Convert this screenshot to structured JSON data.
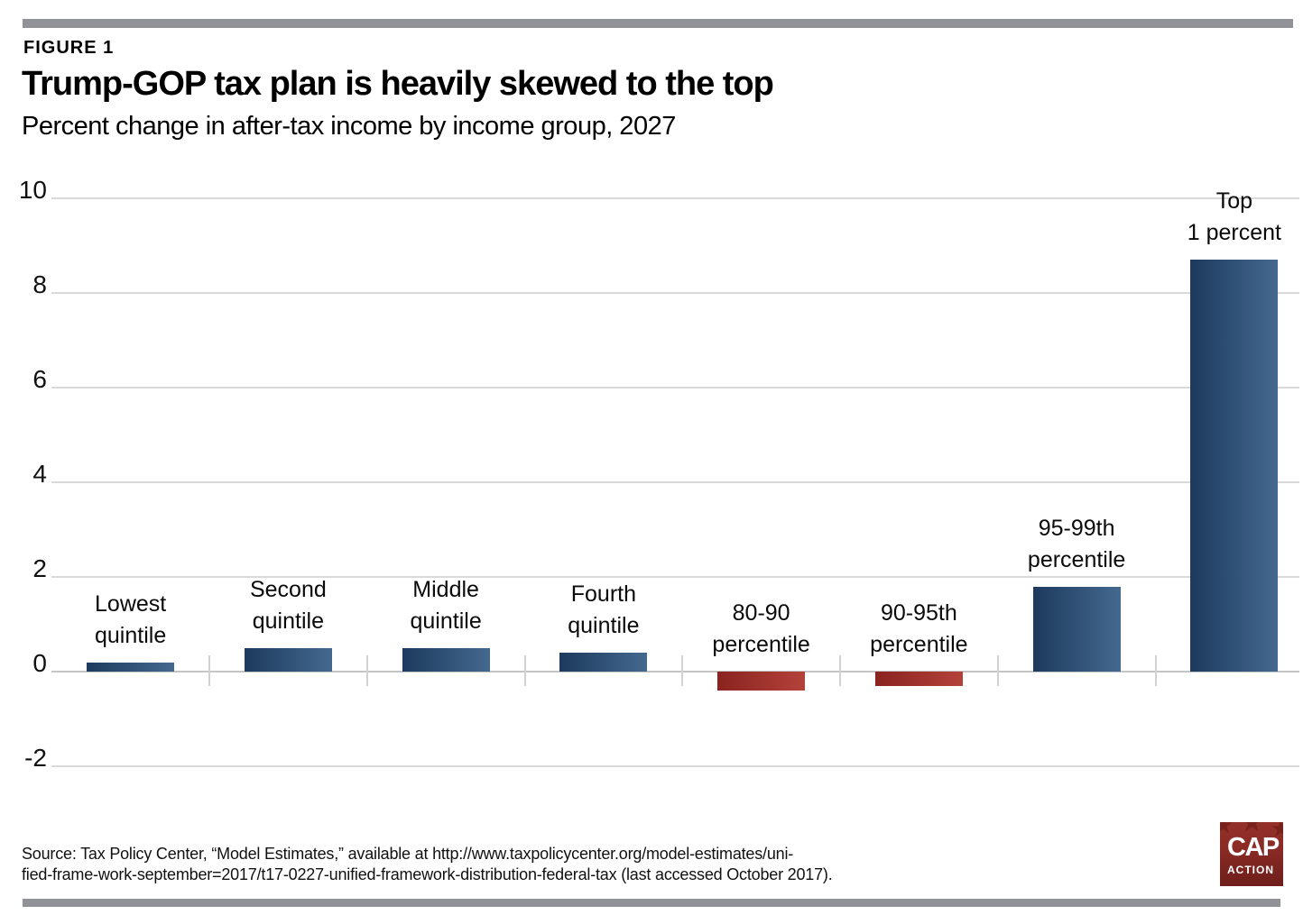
{
  "page": {
    "figure_label": "FIGURE 1",
    "title": "Trump-GOP tax plan is heavily skewed to the top",
    "subtitle": "Percent change in after-tax income by income group, 2027",
    "source_lines": [
      "Source: Tax Policy Center, “Model Estimates,” available at http://www.taxpolicycenter.org/model-estimates/uni-",
      "fied-frame-work-september=2017/t17-0227-unified-framework-distribution-federal-tax (last accessed October 2017)."
    ],
    "logo": {
      "line1": "CAP",
      "line2": "ACTION"
    }
  },
  "colors": {
    "bar_blue_dark": "#1d3a5e",
    "bar_blue_light": "#44698f",
    "bar_red_dark": "#8a231f",
    "bar_red_light": "#b4423a",
    "rule_gray": "#909298",
    "gridline": "#d9d9d9",
    "zero_line": "#c4c4c4",
    "logo_red_top": "#93302a",
    "logo_red_bottom": "#6e1e1b"
  },
  "chart_data": {
    "type": "bar",
    "figure_label": "FIGURE 1",
    "title": "Trump-GOP tax plan is heavily skewed to the top",
    "subtitle": "Percent change in after-tax income by income group, 2027",
    "xlabel": "",
    "ylabel": "",
    "ylim": [
      -2,
      10
    ],
    "grid": true,
    "legend": "none",
    "categories": [
      "Lowest quintile",
      "Second quintile",
      "Middle quintile",
      "Fourth quintile",
      "80-90 percentile",
      "90-95th percentile",
      "95-99th percentile",
      "Top 1 percent"
    ],
    "category_label_lines": [
      [
        "Lowest",
        "quintile"
      ],
      [
        "Second",
        "quintile"
      ],
      [
        "Middle",
        "quintile"
      ],
      [
        "Fourth",
        "quintile"
      ],
      [
        "80-90",
        "percentile"
      ],
      [
        "90-95th",
        "percentile"
      ],
      [
        "95-99th",
        "percentile"
      ],
      [
        "Top",
        "1 percent"
      ]
    ],
    "values": [
      0.2,
      0.5,
      0.5,
      0.4,
      -0.4,
      -0.3,
      1.8,
      8.7
    ],
    "bar_colors": [
      "blue",
      "blue",
      "blue",
      "blue",
      "red",
      "red",
      "blue",
      "blue"
    ],
    "yticks": [
      10,
      8,
      6,
      4,
      2,
      0,
      -2
    ],
    "ytick_labels": [
      "10",
      "8",
      "6",
      "4",
      "2",
      "0",
      "-2"
    ]
  }
}
